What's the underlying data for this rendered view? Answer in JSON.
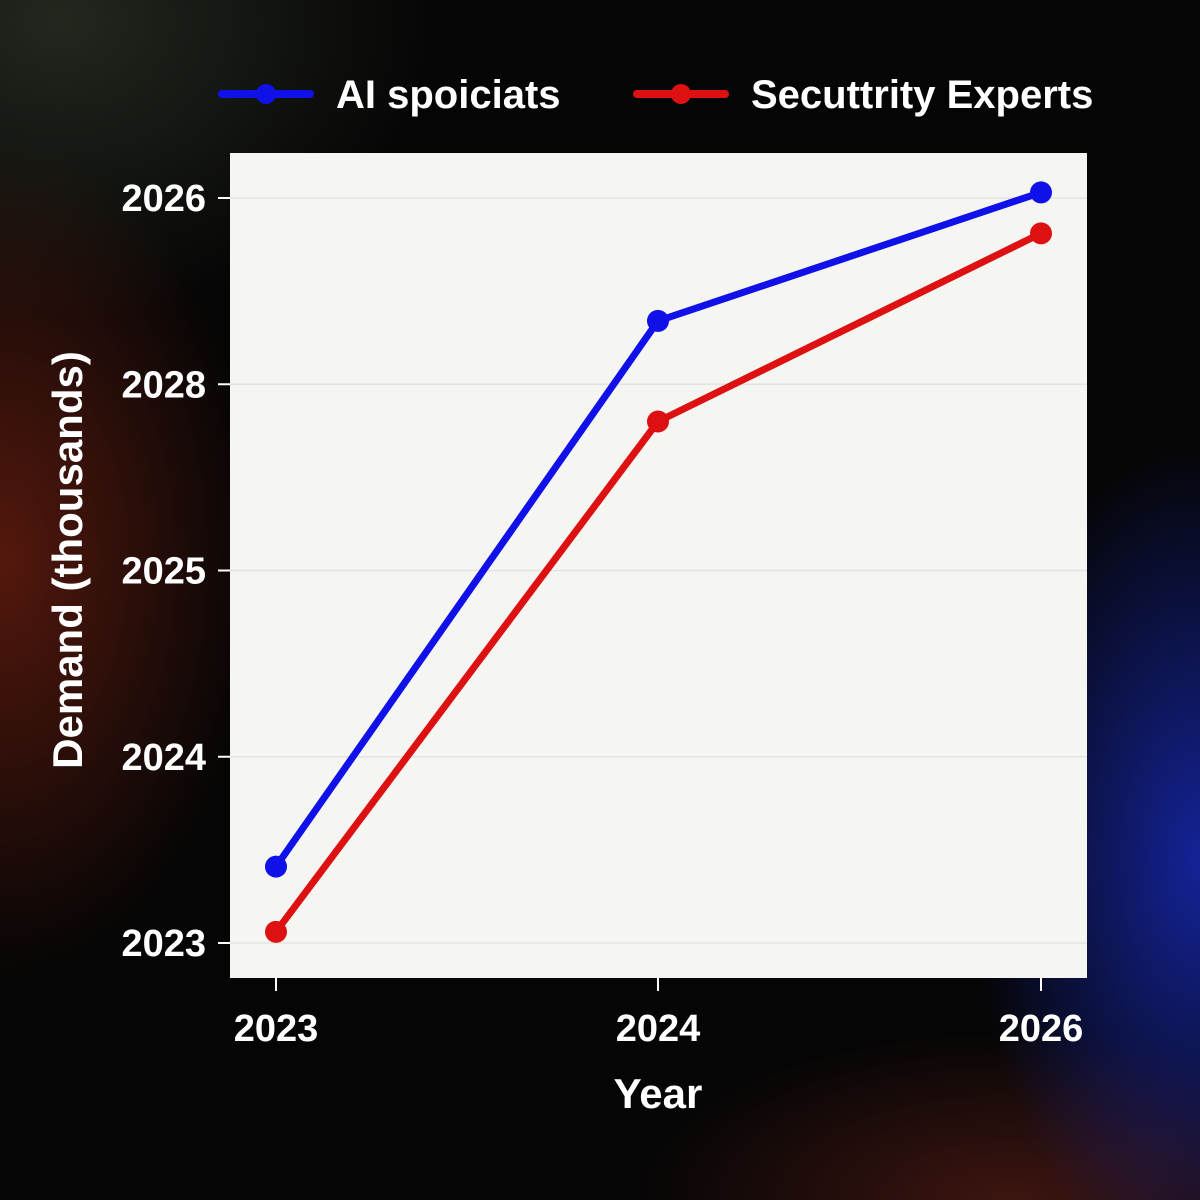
{
  "chart_data": {
    "type": "line",
    "title": "",
    "xlabel": "Year",
    "ylabel": "Demand (thousands)",
    "x": [
      "2023",
      "2024",
      "2026"
    ],
    "y_tick_labels": [
      "2023",
      "2024",
      "2025",
      "2028",
      "2026"
    ],
    "y_tick_values": [
      0,
      1,
      2,
      3,
      4
    ],
    "ylim": [
      0,
      4
    ],
    "grid": "horizontal",
    "legend_position": "top",
    "series": [
      {
        "name": "AI spoiciats",
        "color": "#1010e8",
        "values": [
          0.41,
          3.34,
          4.03
        ]
      },
      {
        "name": "Secuttrity Experts",
        "color": "#dd1111",
        "values": [
          0.06,
          2.8,
          3.81
        ]
      }
    ]
  }
}
